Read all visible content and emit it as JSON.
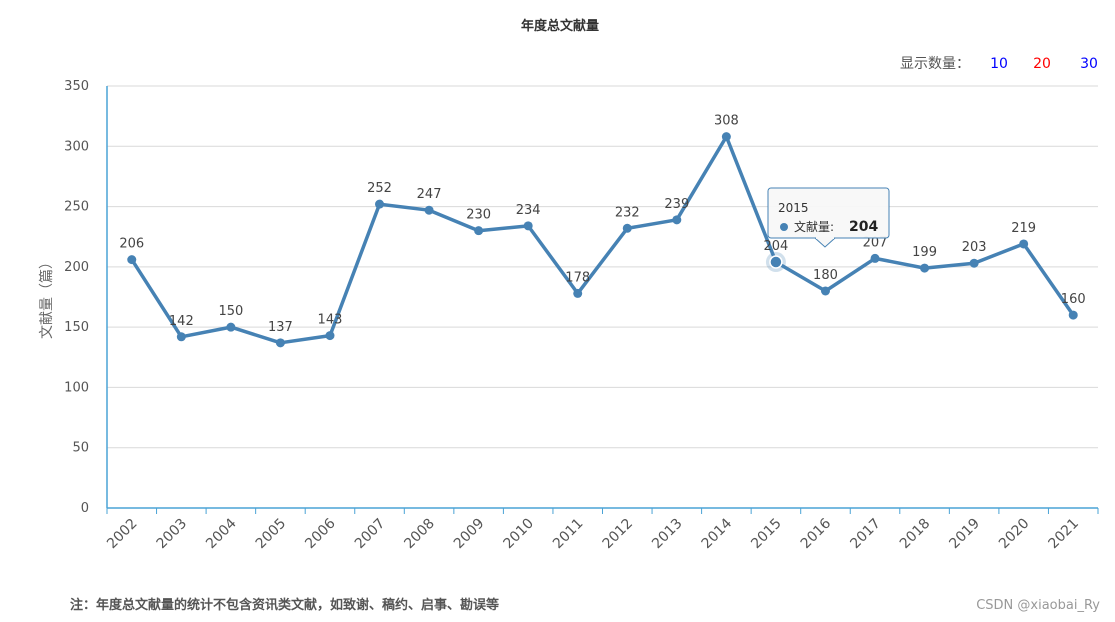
{
  "chart_data": {
    "type": "line",
    "title": "年度总文献量",
    "ylabel": "文献量（篇）",
    "xlabel": "",
    "categories": [
      "2002",
      "2003",
      "2004",
      "2005",
      "2006",
      "2007",
      "2008",
      "2009",
      "2010",
      "2011",
      "2012",
      "2013",
      "2014",
      "2015",
      "2016",
      "2017",
      "2018",
      "2019",
      "2020",
      "2021"
    ],
    "series": [
      {
        "name": "文献量",
        "values": [
          206,
          142,
          150,
          137,
          143,
          252,
          247,
          230,
          234,
          178,
          232,
          239,
          308,
          204,
          180,
          207,
          199,
          203,
          219,
          160
        ]
      }
    ],
    "ylim": [
      0,
      350
    ],
    "yticks": [
      0,
      50,
      100,
      150,
      200,
      250,
      300,
      350
    ],
    "grid": true,
    "legend": "none",
    "line_color": "#4682b4"
  },
  "controls": {
    "label": "显示数量：",
    "options": [
      {
        "text": "10",
        "color": "#0000ff"
      },
      {
        "text": "20",
        "color": "#ff0000"
      },
      {
        "text": "30",
        "color": "#0000ff"
      }
    ]
  },
  "tooltip": {
    "category": "2015",
    "series_label": "文献量:",
    "value": "204"
  },
  "note": "注：年度总文献量的统计不包含资讯类文献，如致谢、稿约、启事、勘误等",
  "watermark": "CSDN @xiaobai_Ry"
}
